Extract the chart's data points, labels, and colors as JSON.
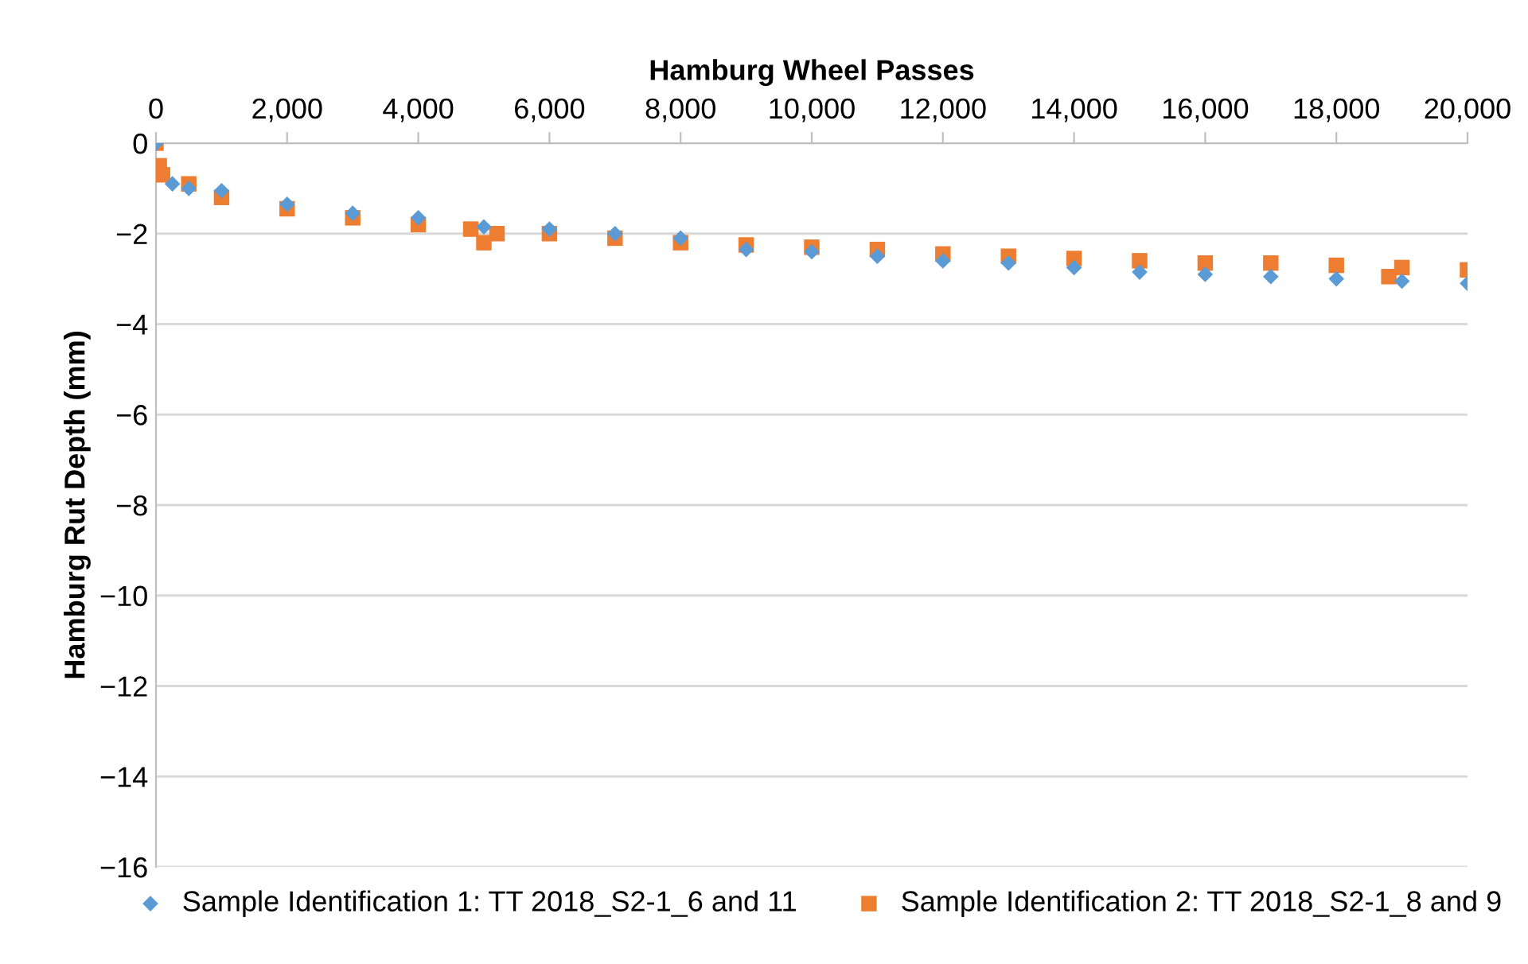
{
  "chart_data": {
    "type": "scatter",
    "xlabel": "Hamburg Wheel Passes",
    "ylabel": "Hamburg Rut Depth (mm)",
    "xlim": [
      0,
      20000
    ],
    "xticks": [
      {
        "value": 0,
        "label": "0"
      },
      {
        "value": 2000,
        "label": "2,000"
      },
      {
        "value": 4000,
        "label": "4,000"
      },
      {
        "value": 6000,
        "label": "6,000"
      },
      {
        "value": 8000,
        "label": "8,000"
      },
      {
        "value": 10000,
        "label": "10,000"
      },
      {
        "value": 12000,
        "label": "12,000"
      },
      {
        "value": 14000,
        "label": "14,000"
      },
      {
        "value": 16000,
        "label": "16,000"
      },
      {
        "value": 18000,
        "label": "18,000"
      },
      {
        "value": 20000,
        "label": "20,000"
      }
    ],
    "ylim": [
      -16,
      0
    ],
    "yticks": [
      -16,
      -14,
      -12,
      -10,
      -8,
      -6,
      -4,
      -2,
      0
    ],
    "grid": "y",
    "legend": "bottom",
    "series": [
      {
        "name": "Sample Identification 1: TT 2018_S2-1_6 and 11",
        "color": "#5b9bd5",
        "marker": "diamond",
        "x": [
          0,
          250,
          500,
          1000,
          2000,
          3000,
          4000,
          5000,
          6000,
          7000,
          8000,
          9000,
          10000,
          11000,
          12000,
          13000,
          14000,
          15000,
          16000,
          17000,
          18000,
          19000,
          20000
        ],
        "values": [
          0,
          -0.9,
          -1.0,
          -1.05,
          -1.35,
          -1.55,
          -1.65,
          -1.85,
          -1.9,
          -2.0,
          -2.1,
          -2.35,
          -2.4,
          -2.5,
          -2.6,
          -2.65,
          -2.75,
          -2.85,
          -2.9,
          -2.95,
          -3.0,
          -3.05,
          -3.1
        ]
      },
      {
        "name": "Sample Identification 2: TT 2018_S2-1_8 and 9",
        "color": "#ed7d31",
        "marker": "square",
        "x": [
          0,
          50,
          100,
          500,
          1000,
          2000,
          3000,
          4000,
          4800,
          5000,
          5200,
          6000,
          7000,
          8000,
          9000,
          10000,
          11000,
          12000,
          13000,
          14000,
          15000,
          16000,
          17000,
          18000,
          18800,
          19000,
          20000
        ],
        "values": [
          0,
          -0.5,
          -0.7,
          -0.9,
          -1.2,
          -1.45,
          -1.65,
          -1.8,
          -1.9,
          -2.2,
          -2.0,
          -2.0,
          -2.1,
          -2.2,
          -2.25,
          -2.3,
          -2.35,
          -2.45,
          -2.5,
          -2.55,
          -2.6,
          -2.65,
          -2.65,
          -2.7,
          -2.95,
          -2.75,
          -2.8
        ]
      }
    ]
  }
}
